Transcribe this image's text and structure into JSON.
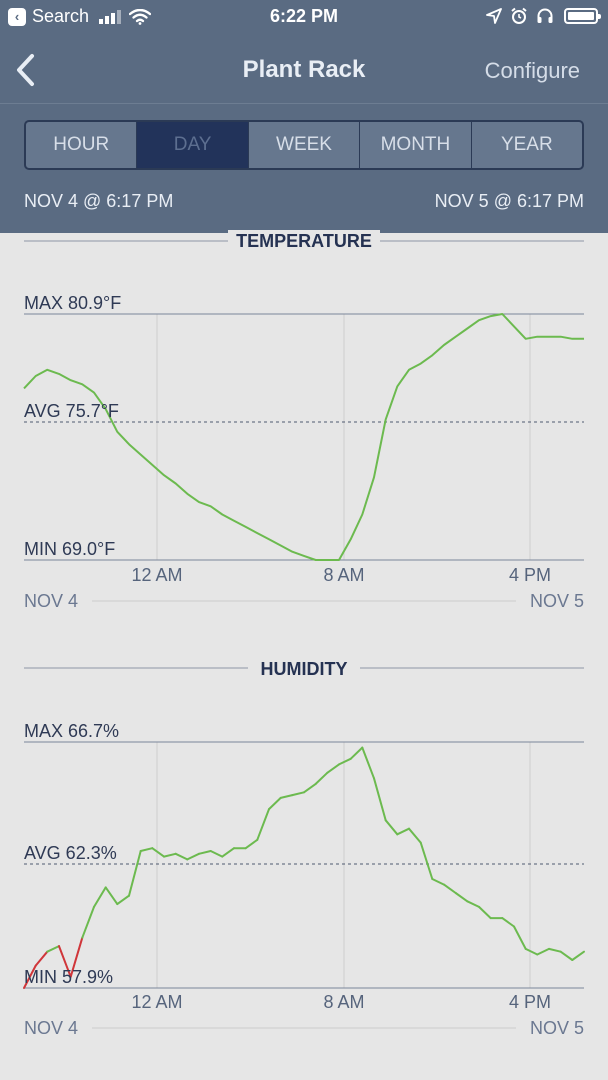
{
  "status_bar": {
    "back_app": "Search",
    "time": "6:22 PM"
  },
  "nav": {
    "title": "Plant Rack",
    "configure_label": "Configure"
  },
  "range_tabs": {
    "items": [
      "HOUR",
      "DAY",
      "WEEK",
      "MONTH",
      "YEAR"
    ],
    "selected": "DAY"
  },
  "date_range": {
    "start": "NOV 4 @ 6:17 PM",
    "end": "NOV 5 @ 6:17 PM"
  },
  "colors": {
    "header_bg": "#5a6b82",
    "segment_active": "#22335a",
    "content_bg": "#e6e6e6",
    "line_ok": "#6cba4f",
    "line_alert": "#d0363a"
  },
  "chart_data": [
    {
      "type": "line",
      "title": "TEMPERATURE",
      "x_ticks": [
        "12 AM",
        "8 AM",
        "4 PM"
      ],
      "x_tick_hours": [
        5.72,
        13.72,
        21.72
      ],
      "date_left": "NOV 4",
      "date_right": "NOV 5",
      "max_label": "MAX 80.9°F",
      "avg_label": "AVG 75.7°F",
      "min_label": "MIN 69.0°F",
      "ylim": [
        69.0,
        80.9
      ],
      "avg": 75.7,
      "unit": "°F",
      "series": [
        {
          "color": "#6cba4f",
          "x": [
            0,
            0.5,
            1,
            1.5,
            2,
            2.5,
            3,
            3.5,
            4,
            4.5,
            5,
            5.5,
            6,
            6.5,
            7,
            7.5,
            8,
            8.5,
            9,
            9.5,
            10,
            10.5,
            11,
            11.5,
            12,
            12.5,
            13,
            13.5,
            14,
            14.5,
            15,
            15.5,
            16,
            16.5,
            17,
            17.5,
            18,
            18.5,
            19,
            19.5,
            20,
            20.5,
            21,
            21.5,
            22,
            22.5,
            23,
            23.5,
            24
          ],
          "y": [
            77.3,
            77.9,
            78.2,
            78.0,
            77.7,
            77.5,
            77.1,
            76.3,
            75.2,
            74.6,
            74.1,
            73.6,
            73.1,
            72.7,
            72.2,
            71.8,
            71.6,
            71.2,
            70.9,
            70.6,
            70.3,
            70.0,
            69.7,
            69.4,
            69.2,
            69.0,
            69.0,
            69.0,
            70.0,
            71.2,
            73.0,
            75.8,
            77.4,
            78.2,
            78.5,
            78.9,
            79.4,
            79.8,
            80.2,
            80.6,
            80.8,
            80.9,
            80.3,
            79.7,
            79.8,
            79.8,
            79.8,
            79.7,
            79.7
          ]
        }
      ]
    },
    {
      "type": "line",
      "title": "HUMIDITY",
      "x_ticks": [
        "12 AM",
        "8 AM",
        "4 PM"
      ],
      "x_tick_hours": [
        5.72,
        13.72,
        21.72
      ],
      "date_left": "NOV 4",
      "date_right": "NOV 5",
      "max_label": "MAX 66.7%",
      "avg_label": "AVG 62.3%",
      "min_label": "MIN 57.9%",
      "ylim": [
        57.9,
        66.7
      ],
      "avg": 62.3,
      "unit": "%",
      "series": [
        {
          "color": "#6cba4f",
          "alert_color": "#d0363a",
          "low_threshold": 58.9,
          "x": [
            0,
            0.5,
            1,
            1.5,
            2,
            2.5,
            3,
            3.5,
            4,
            4.5,
            5,
            5.5,
            6,
            6.5,
            7,
            7.5,
            8,
            8.5,
            9,
            9.5,
            10,
            10.5,
            11,
            11.5,
            12,
            12.5,
            13,
            13.5,
            14,
            14.5,
            15,
            15.5,
            16,
            16.5,
            17,
            17.5,
            18,
            18.5,
            19,
            19.5,
            20,
            20.5,
            21,
            21.5,
            22,
            22.5,
            23,
            23.5,
            24
          ],
          "y": [
            57.9,
            58.7,
            59.2,
            59.4,
            58.3,
            59.7,
            60.8,
            61.5,
            60.9,
            61.2,
            62.8,
            62.9,
            62.6,
            62.7,
            62.5,
            62.7,
            62.8,
            62.6,
            62.9,
            62.9,
            63.2,
            64.3,
            64.7,
            64.8,
            64.9,
            65.2,
            65.6,
            65.9,
            66.1,
            66.5,
            65.4,
            63.9,
            63.4,
            63.6,
            63.1,
            61.8,
            61.6,
            61.3,
            61.0,
            60.8,
            60.4,
            60.4,
            60.1,
            59.3,
            59.1,
            59.3,
            59.2,
            58.9,
            59.2
          ]
        }
      ]
    }
  ]
}
